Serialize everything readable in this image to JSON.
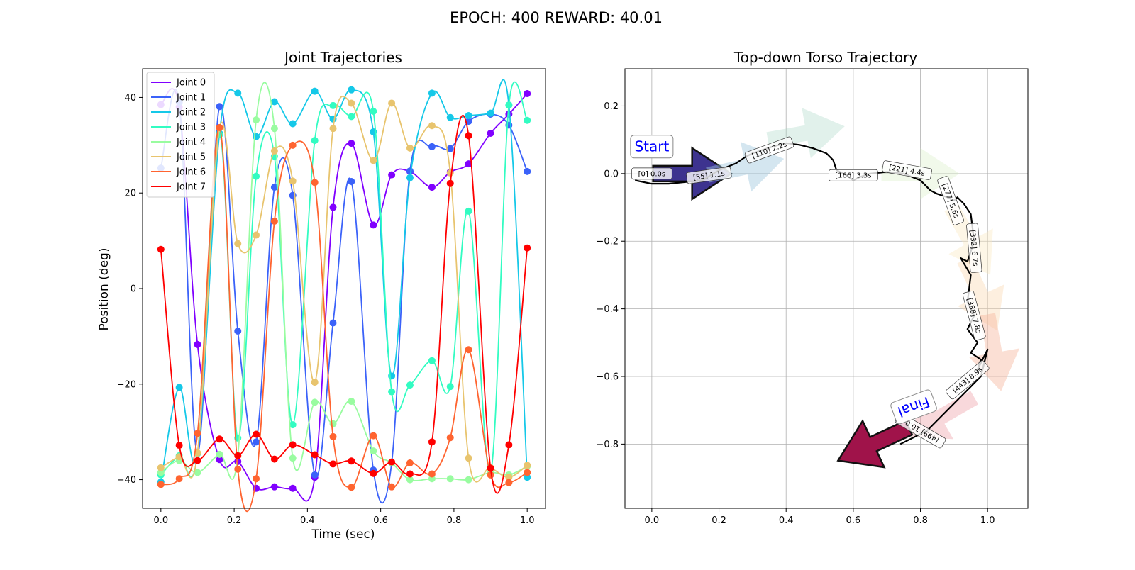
{
  "suptitle": "EPOCH: 400 REWARD:  40.01",
  "left_panel": {
    "title": "Joint Trajectories",
    "xlabel": "Time (sec)",
    "ylabel": "Position (deg)"
  },
  "right_panel": {
    "title": "Top-down Torso Trajectory",
    "start_label": "Start",
    "final_label": "Final"
  },
  "chart_data": [
    {
      "type": "line",
      "title": "Joint Trajectories",
      "xlabel": "Time (sec)",
      "ylabel": "Position (deg)",
      "xlim": [
        -0.05,
        1.05
      ],
      "ylim": [
        -46,
        46
      ],
      "xticks": [
        0.0,
        0.2,
        0.4,
        0.6,
        0.8,
        1.0
      ],
      "xtick_labels": [
        "0.0",
        "0.2",
        "0.4",
        "0.6",
        "0.8",
        "1.0"
      ],
      "yticks": [
        -40,
        -20,
        0,
        20,
        40
      ],
      "ytick_labels": [
        "−40",
        "−20",
        "0",
        "20",
        "40"
      ],
      "legend_location": "upper-left",
      "x": [
        0.0,
        0.05,
        0.1,
        0.16,
        0.21,
        0.26,
        0.31,
        0.36,
        0.42,
        0.47,
        0.52,
        0.58,
        0.63,
        0.68,
        0.74,
        0.79,
        0.84,
        0.9,
        0.95,
        1.0
      ],
      "series": [
        {
          "name": "Joint 0",
          "color": "#8000ff",
          "values": [
            38.5,
            38,
            -11.7,
            -35.8,
            -36.2,
            -41.8,
            -41.5,
            -41.8,
            -39.5,
            17,
            30.4,
            13.3,
            23.8,
            24.5,
            21.2,
            24.4,
            26.1,
            32.5,
            36.5,
            40.8
          ]
        },
        {
          "name": "Joint 1",
          "color": "#3b62f9",
          "values": [
            25.2,
            39,
            -34.5,
            38.1,
            -8.9,
            -32.1,
            21.2,
            19.5,
            -39,
            -7.2,
            22.4,
            -38,
            -36.5,
            24.6,
            29.7,
            29.3,
            35,
            36.5,
            34.2,
            24.5
          ]
        },
        {
          "name": "Joint 2",
          "color": "#15c8e8",
          "values": [
            -40.5,
            -20.7,
            -34.5,
            32.5,
            40.9,
            31.8,
            39.1,
            34.5,
            41.3,
            35.5,
            41.6,
            32.8,
            -18.3,
            23.2,
            40.9,
            35.8,
            36.2,
            36.7,
            38.4,
            -39.5
          ]
        },
        {
          "name": "Joint 3",
          "color": "#32fcc2",
          "values": [
            -39,
            -35,
            -34.5,
            32.2,
            -31.3,
            23.5,
            27.7,
            -28.5,
            31,
            38.3,
            36,
            37.1,
            -21.6,
            -20.2,
            -15.1,
            -20.5,
            16.2,
            -38.5,
            38.4,
            35.2
          ]
        },
        {
          "name": "Joint 4",
          "color": "#99fca0",
          "values": [
            -38.5,
            -36,
            -38.5,
            -34.7,
            -34.9,
            35.3,
            33.5,
            -35.5,
            -23.8,
            -28.3,
            -23.6,
            -34,
            -36.5,
            -40,
            -39.8,
            -39.8,
            -40,
            -38.5,
            -39,
            -37.2
          ]
        },
        {
          "name": "Joint 5",
          "color": "#e8c46e",
          "values": [
            -37.5,
            -35.2,
            -34.4,
            33.6,
            9.4,
            11.2,
            28.8,
            22.5,
            -19.6,
            33.5,
            38.8,
            26.8,
            38.8,
            29.4,
            34.1,
            24.2,
            -35.5,
            -37.5,
            -39.5,
            -37
          ]
        },
        {
          "name": "Joint 6",
          "color": "#ff6430",
          "values": [
            -41,
            -39.8,
            -30.3,
            33.7,
            -37.8,
            -39.8,
            14.1,
            30,
            22.2,
            -31,
            -41.6,
            -30.8,
            -41.5,
            -36.5,
            -38.8,
            -31.2,
            -12.8,
            -39,
            -40.6,
            -38.5
          ]
        },
        {
          "name": "Joint 7",
          "color": "#ff0000",
          "values": [
            8.2,
            -32.8,
            -36,
            -31.5,
            -35,
            -30.5,
            -35.7,
            -32.7,
            -34.8,
            -36.7,
            -36.1,
            -38.7,
            -36.3,
            -38.8,
            -32.1,
            22,
            32,
            -37.6,
            -32.7,
            8.5
          ]
        }
      ]
    },
    {
      "type": "line",
      "title": "Top-down Torso Trajectory",
      "xlim": [
        -0.08,
        1.12
      ],
      "ylim": [
        -0.99,
        0.31
      ],
      "xticks": [
        0.0,
        0.2,
        0.4,
        0.6,
        0.8,
        1.0
      ],
      "xtick_labels": [
        "0.0",
        "0.2",
        "0.4",
        "0.6",
        "0.8",
        "1.0"
      ],
      "yticks": [
        0.2,
        0.0,
        -0.2,
        -0.4,
        -0.6,
        -0.8
      ],
      "ytick_labels": [
        "0.2",
        "0.0",
        "−0.2",
        "−0.4",
        "−0.6",
        "−0.8"
      ],
      "grid": true,
      "series": [
        {
          "name": "",
          "color": "#000000",
          "x": [
            -0.05,
            0.0,
            0.05,
            0.1,
            0.15,
            0.2,
            0.25,
            0.28,
            0.3,
            0.33,
            0.36,
            0.4,
            0.44,
            0.48,
            0.52,
            0.54,
            0.55,
            0.58,
            0.6,
            0.62,
            0.65,
            0.7,
            0.75,
            0.8,
            0.83,
            0.85,
            0.88,
            0.9,
            0.91,
            0.93,
            0.95,
            0.96,
            0.94,
            0.92,
            0.95,
            0.94,
            0.96,
            0.94,
            0.97,
            0.95,
            0.98,
            0.97,
            1.0,
            0.98,
            0.95,
            0.92,
            0.88,
            0.85,
            0.82,
            0.78,
            0.74
          ],
          "y": [
            -0.02,
            -0.03,
            -0.03,
            -0.025,
            -0.02,
            0.01,
            0.03,
            0.05,
            0.06,
            0.07,
            0.08,
            0.09,
            0.085,
            0.075,
            0.06,
            0.04,
            0.01,
            -0.005,
            -0.02,
            -0.01,
            0.0,
            0.005,
            0.0,
            -0.02,
            -0.05,
            -0.06,
            -0.07,
            -0.08,
            -0.07,
            -0.09,
            -0.12,
            -0.2,
            -0.26,
            -0.25,
            -0.3,
            -0.38,
            -0.42,
            -0.46,
            -0.5,
            -0.53,
            -0.55,
            -0.58,
            -0.52,
            -0.6,
            -0.63,
            -0.66,
            -0.7,
            -0.73,
            -0.76,
            -0.78,
            -0.8
          ]
        }
      ],
      "waypoints": [
        {
          "label": "[0] 0.0s",
          "x": 0.0,
          "y": 0.0,
          "angle": 0
        },
        {
          "label": "[55] 1.1s",
          "x": 0.17,
          "y": -0.005,
          "angle": -8
        },
        {
          "label": "[110] 2.2s",
          "x": 0.35,
          "y": 0.07,
          "angle": -20
        },
        {
          "label": "[166] 3.3s",
          "x": 0.6,
          "y": -0.005,
          "angle": 0
        },
        {
          "label": "[221] 4.4s",
          "x": 0.76,
          "y": 0.01,
          "angle": 10
        },
        {
          "label": "[277] 5.6s",
          "x": 0.89,
          "y": -0.08,
          "angle": 70
        },
        {
          "label": "[332] 6.7s",
          "x": 0.96,
          "y": -0.22,
          "angle": 85
        },
        {
          "label": "[388] 7.8s",
          "x": 0.96,
          "y": -0.42,
          "angle": 75
        },
        {
          "label": "[443] 8.9s",
          "x": 0.94,
          "y": -0.61,
          "angle": -40
        },
        {
          "label": "[499] 10.0s",
          "x": 0.8,
          "y": -0.76,
          "angle": -150
        }
      ],
      "heading_arrows": [
        {
          "x": 0.12,
          "y": 0.0,
          "dir": 0,
          "color": "#3d338f",
          "opacity": 1.0
        },
        {
          "x": 0.28,
          "y": 0.02,
          "dir": 12,
          "color": "#a0c7dd",
          "opacity": 0.45
        },
        {
          "x": 0.46,
          "y": 0.12,
          "dir": 10,
          "color": "#a8d8c6",
          "opacity": 0.35
        },
        {
          "x": 0.8,
          "y": 0.0,
          "dir": 0,
          "color": "#d6eec4",
          "opacity": 0.35
        },
        {
          "x": 0.95,
          "y": -0.2,
          "dir": -60,
          "color": "#fbe8c0",
          "opacity": 0.4
        },
        {
          "x": 0.98,
          "y": -0.36,
          "dir": -65,
          "color": "#fbd8b0",
          "opacity": 0.4
        },
        {
          "x": 1.02,
          "y": -0.53,
          "dir": -80,
          "color": "#f6b7a0",
          "opacity": 0.45
        },
        {
          "x": 0.86,
          "y": -0.72,
          "dir": -150,
          "color": "#f0a8b0",
          "opacity": 0.45
        },
        {
          "x": 0.66,
          "y": -0.8,
          "dir": -155,
          "color": "#a0134a",
          "opacity": 1.0
        }
      ]
    }
  ]
}
